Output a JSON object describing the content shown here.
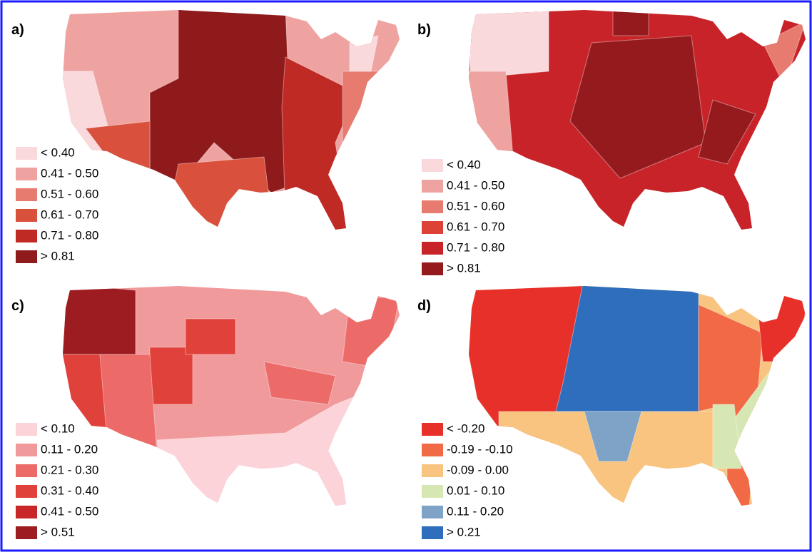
{
  "panels": [
    {
      "label": "a)",
      "legend": [
        {
          "label": "< 0.40",
          "color": "#f9d9dc"
        },
        {
          "label": "0.41 - 0.50",
          "color": "#efa3a1"
        },
        {
          "label": "0.51 - 0.60",
          "color": "#e77b6f"
        },
        {
          "label": "0.61 - 0.70",
          "color": "#d9503c"
        },
        {
          "label": "0.71 - 0.80",
          "color": "#c02a24"
        },
        {
          "label": "> 0.81",
          "color": "#8f1a1b"
        }
      ]
    },
    {
      "label": "b)",
      "legend": [
        {
          "label": "< 0.40",
          "color": "#f9d9dc"
        },
        {
          "label": "0.41 - 0.50",
          "color": "#efa3a1"
        },
        {
          "label": "0.51 - 0.60",
          "color": "#e77b6f"
        },
        {
          "label": "0.61 - 0.70",
          "color": "#dd4236"
        },
        {
          "label": "0.71 - 0.80",
          "color": "#c82328"
        },
        {
          "label": "> 0.81",
          "color": "#951a1e"
        }
      ]
    },
    {
      "label": "c)",
      "legend": [
        {
          "label": "< 0.10",
          "color": "#fbd3d9"
        },
        {
          "label": "0.11 - 0.20",
          "color": "#f19a9c"
        },
        {
          "label": "0.21 - 0.30",
          "color": "#ec6b68"
        },
        {
          "label": "0.31 - 0.40",
          "color": "#e0413a"
        },
        {
          "label": "0.41 - 0.50",
          "color": "#c9262a"
        },
        {
          "label": "> 0.51",
          "color": "#9c1c22"
        }
      ]
    },
    {
      "label": "d)",
      "legend": [
        {
          "label": "< -0.20",
          "color": "#e8302a"
        },
        {
          "label": "-0.19 - -0.10",
          "color": "#f16a45"
        },
        {
          "label": "-0.09 - 0.00",
          "color": "#f8c47f"
        },
        {
          "label": "0.01 - 0.10",
          "color": "#d6e7b4"
        },
        {
          "label": "0.11 - 0.20",
          "color": "#7ea3c6"
        },
        {
          "label": "> 0.21",
          "color": "#2e6ebd"
        }
      ]
    }
  ]
}
